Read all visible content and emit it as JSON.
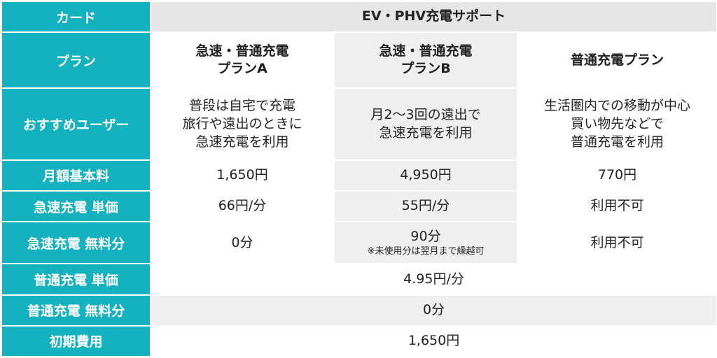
{
  "header": {
    "card_label": "カード",
    "card_name": "EV・PHV充電サポート"
  },
  "plan_row": {
    "label": "プラン",
    "plans": [
      "急速・普通充電\nプランA",
      "急速・普通充電\nプランB",
      "普通充電プラン"
    ]
  },
  "rows": {
    "recommended": {
      "label": "おすすめユーザー",
      "values": [
        "普段は自宅で充電\n旅行や遠出のときに\n急速充電を利用",
        "月2〜3回の遠出で\n急速充電を利用",
        "生活圏内での移動が中心\n買い物先などで\n普通充電を利用"
      ]
    },
    "monthly_fee": {
      "label": "月額基本料",
      "values": [
        "1,650円",
        "4,950円",
        "770円"
      ]
    },
    "rapid_unit_price": {
      "label": "急速充電 単価",
      "values": [
        "66円/分",
        "55円/分",
        "利用不可"
      ]
    },
    "rapid_free": {
      "label": "急速充電 無料分",
      "values": [
        "0分",
        "90分",
        "利用不可"
      ],
      "note": "※未使用分は翌月まで繰越可"
    },
    "normal_unit_price": {
      "label": "普通充電 単価",
      "value": "4.95円/分"
    },
    "normal_free": {
      "label": "普通充電 無料分",
      "value": "0分"
    },
    "initial_fee": {
      "label": "初期費用",
      "value": "1,650円"
    }
  },
  "colors": {
    "label_bg": "#14b2be",
    "accent": "#c8102e",
    "header_bg": "#e6e6e6",
    "alt_bg": "#efefef"
  }
}
